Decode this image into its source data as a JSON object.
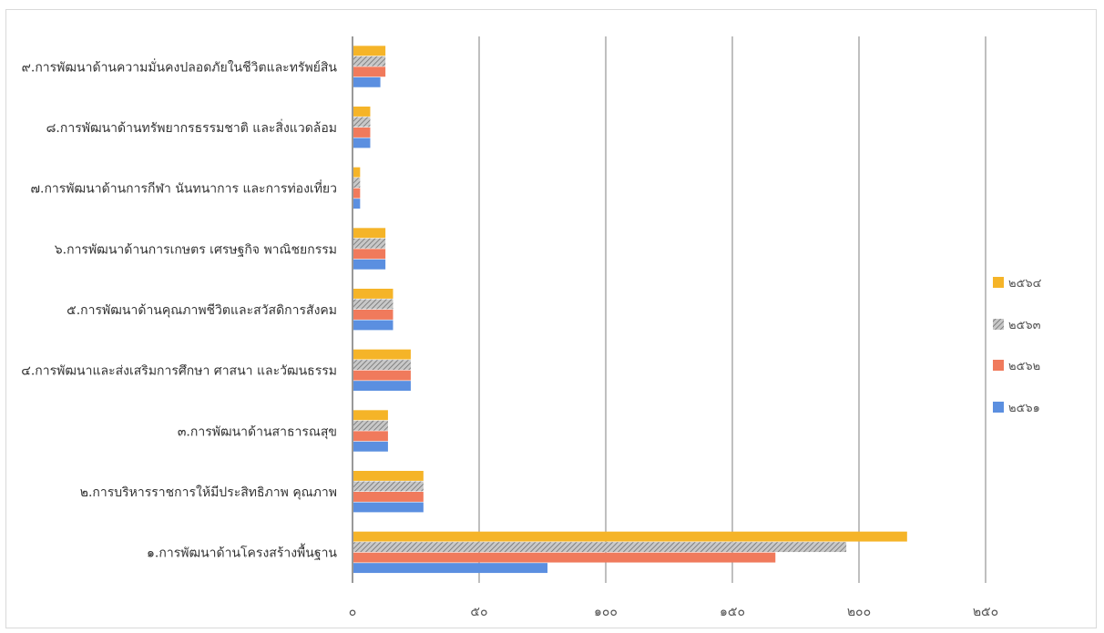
{
  "chart_data": {
    "type": "bar",
    "orientation": "horizontal",
    "categories": [
      "๑.การพัฒนาด้านโครงสร้างพื้นฐาน",
      "๒.การบริหารราชการให้มีประสิทธิภาพ คุณภาพ",
      "๓.การพัฒนาด้านสาธารณสุข",
      "๔.การพัฒนาและส่งเสริมการศึกษา ศาสนา และวัฒนธรรม",
      "๕.การพัฒนาด้านคุณภาพชีวิตและสวัสดิการสังคม",
      "๖.การพัฒนาด้านการเกษตร เศรษฐกิจ พาณิชยกรรม",
      "๗.การพัฒนาด้านการกีฬา นันทนาการ และการท่องเที่ยว",
      "๘.การพัฒนาด้านทรัพยากรธรรมชาติ และสิ่งแวดล้อม",
      "๙.การพัฒนาด้านความมั่นคงปลอดภัยในชีวิตและทรัพย์สิน"
    ],
    "series": [
      {
        "name": "๒๕๖๑",
        "color": "#5b8fe0",
        "values": [
          77,
          28,
          14,
          23,
          16,
          13,
          3,
          7,
          11
        ]
      },
      {
        "name": "๒๕๖๒",
        "color": "#f07a5c",
        "values": [
          167,
          28,
          14,
          23,
          16,
          13,
          3,
          7,
          13
        ]
      },
      {
        "name": "๒๕๖๓",
        "color": "#9a9a9a",
        "values": [
          195,
          28,
          14,
          23,
          16,
          13,
          3,
          7,
          13
        ]
      },
      {
        "name": "๒๕๖๔",
        "color": "#f5b428",
        "values": [
          219,
          28,
          14,
          23,
          16,
          13,
          3,
          7,
          13
        ]
      }
    ],
    "xlim": [
      0,
      250
    ],
    "ticks": [
      {
        "value": 0,
        "label": "๐"
      },
      {
        "value": 50,
        "label": "๕๐"
      },
      {
        "value": 100,
        "label": "๑๐๐"
      },
      {
        "value": 150,
        "label": "๑๕๐"
      },
      {
        "value": 200,
        "label": "๒๐๐"
      },
      {
        "value": 250,
        "label": "๒๕๐"
      }
    ],
    "grid": "vertical",
    "legend": "right",
    "legend_order": [
      "๒๕๖๔",
      "๒๕๖๓",
      "๒๕๖๒",
      "๒๕๖๑"
    ]
  }
}
